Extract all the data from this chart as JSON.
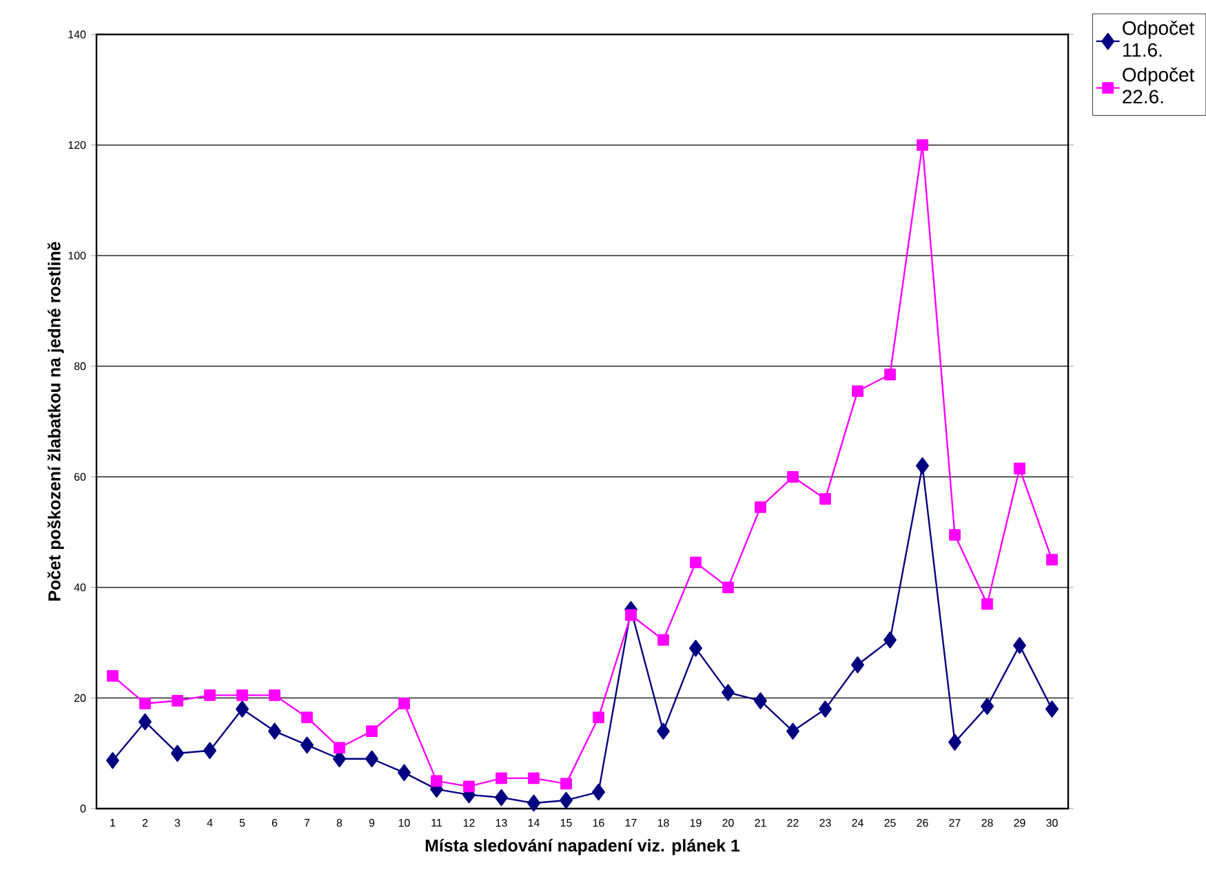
{
  "chart_data": {
    "type": "line",
    "xlabel": "Místa sledování napadení viz. plánek 1",
    "ylabel": "Počet poškození žlabatkou na jedné rostlině",
    "categories": [
      "1",
      "2",
      "3",
      "4",
      "5",
      "6",
      "7",
      "8",
      "9",
      "10",
      "11",
      "12",
      "13",
      "14",
      "15",
      "16",
      "17",
      "18",
      "19",
      "20",
      "21",
      "22",
      "23",
      "24",
      "25",
      "26",
      "27",
      "28",
      "29",
      "30"
    ],
    "series": [
      {
        "name": "Odpočet 11.6.",
        "color": "#000080",
        "marker": "diamond",
        "values": [
          8.7,
          15.7,
          10,
          10.5,
          18,
          14,
          11.5,
          9,
          9,
          6.5,
          3.5,
          2.5,
          2,
          1,
          1.5,
          3,
          36,
          14,
          29,
          21,
          19.5,
          14,
          18,
          26,
          30.5,
          62,
          12,
          18.5,
          29.5,
          18
        ]
      },
      {
        "name": "Odpočet 22.6.",
        "color": "#ff00ff",
        "marker": "square",
        "values": [
          24,
          19,
          19.5,
          20.5,
          20.5,
          20.5,
          16.5,
          11,
          14,
          19,
          5,
          4,
          5.5,
          5.5,
          4.5,
          16.5,
          35,
          30.5,
          44.5,
          40,
          54.5,
          60,
          56,
          75.5,
          78.5,
          120,
          49.5,
          37,
          61.5,
          45
        ]
      }
    ],
    "ylim": [
      0,
      140
    ],
    "yticks": [
      0,
      20,
      40,
      60,
      80,
      100,
      120,
      140
    ],
    "grid": "y",
    "legend": "top right",
    "line_style": "solid"
  }
}
